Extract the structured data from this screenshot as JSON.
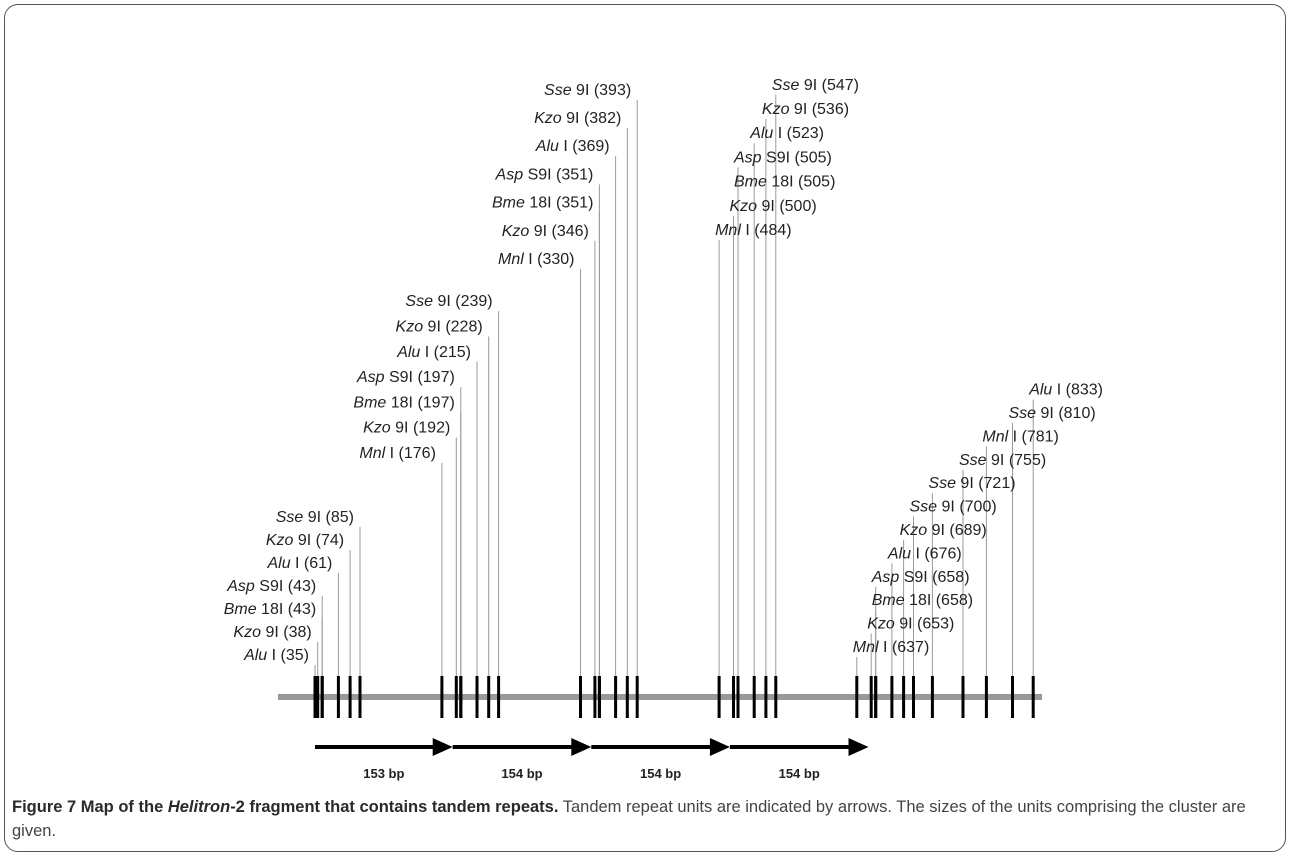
{
  "figure": {
    "bp_length": 153,
    "sites": [
      {
        "enzyme": "Alu",
        "suffix": "I",
        "pos": 35
      },
      {
        "enzyme": "Kzo",
        "suffix": "9I",
        "pos": 38
      },
      {
        "enzyme": "Bme",
        "suffix": "18I",
        "pos": 43
      },
      {
        "enzyme": "Asp",
        "suffix": "S9I",
        "pos": 43
      },
      {
        "enzyme": "Alu",
        "suffix": "I",
        "pos": 61
      },
      {
        "enzyme": "Kzo",
        "suffix": "9I",
        "pos": 74
      },
      {
        "enzyme": "Sse",
        "suffix": "9I",
        "pos": 85
      },
      {
        "enzyme": "Mnl",
        "suffix": "I",
        "pos": 176
      },
      {
        "enzyme": "Kzo",
        "suffix": "9I",
        "pos": 192
      },
      {
        "enzyme": "Bme",
        "suffix": "18I",
        "pos": 197
      },
      {
        "enzyme": "Asp",
        "suffix": "S9I",
        "pos": 197
      },
      {
        "enzyme": "Alu",
        "suffix": "I",
        "pos": 215
      },
      {
        "enzyme": "Kzo",
        "suffix": "9I",
        "pos": 228
      },
      {
        "enzyme": "Sse",
        "suffix": "9I",
        "pos": 239
      },
      {
        "enzyme": "Mnl",
        "suffix": "I",
        "pos": 330
      },
      {
        "enzyme": "Kzo",
        "suffix": "9I",
        "pos": 346
      },
      {
        "enzyme": "Bme",
        "suffix": "18I",
        "pos": 351
      },
      {
        "enzyme": "Asp",
        "suffix": "S9I",
        "pos": 351
      },
      {
        "enzyme": "Alu",
        "suffix": "I",
        "pos": 369
      },
      {
        "enzyme": "Kzo",
        "suffix": "9I",
        "pos": 382
      },
      {
        "enzyme": "Sse",
        "suffix": "9I",
        "pos": 393
      },
      {
        "enzyme": "Mnl",
        "suffix": "I",
        "pos": 484
      },
      {
        "enzyme": "Kzo",
        "suffix": "9I",
        "pos": 500
      },
      {
        "enzyme": "Bme",
        "suffix": "18I",
        "pos": 505
      },
      {
        "enzyme": "Asp",
        "suffix": "S9I",
        "pos": 505
      },
      {
        "enzyme": "Alu",
        "suffix": "I",
        "pos": 523
      },
      {
        "enzyme": "Kzo",
        "suffix": "9I",
        "pos": 536
      },
      {
        "enzyme": "Sse",
        "suffix": "9I",
        "pos": 547
      },
      {
        "enzyme": "Mnl",
        "suffix": "I",
        "pos": 637
      },
      {
        "enzyme": "Kzo",
        "suffix": "9I",
        "pos": 653
      },
      {
        "enzyme": "Bme",
        "suffix": "18I",
        "pos": 658
      },
      {
        "enzyme": "Asp",
        "suffix": "S9I",
        "pos": 658
      },
      {
        "enzyme": "Alu",
        "suffix": "I",
        "pos": 676
      },
      {
        "enzyme": "Kzo",
        "suffix": "9I",
        "pos": 689
      },
      {
        "enzyme": "Sse",
        "suffix": "9I",
        "pos": 700
      },
      {
        "enzyme": "Sse",
        "suffix": "9I",
        "pos": 721
      },
      {
        "enzyme": "Sse",
        "suffix": "9I",
        "pos": 755
      },
      {
        "enzyme": "Mnl",
        "suffix": "I",
        "pos": 781
      },
      {
        "enzyme": "Sse",
        "suffix": "9I",
        "pos": 810
      },
      {
        "enzyme": "Alu",
        "suffix": "I",
        "pos": 833
      }
    ],
    "repeats": [
      {
        "start": 35,
        "end": 188,
        "size_label": "153 bp"
      },
      {
        "start": 188,
        "end": 342,
        "size_label": "154 bp"
      },
      {
        "start": 342,
        "end": 496,
        "size_label": "154 bp"
      },
      {
        "start": 496,
        "end": 650,
        "size_label": "154 bp"
      }
    ],
    "colors": {
      "line": "#999999",
      "mark": "#000000",
      "leader": "#9a9a9a",
      "text": "#222222"
    }
  },
  "caption": {
    "lead_a": "Figure 7 Map of the ",
    "lead_italic": "Helitron",
    "lead_b": "-2 fragment that contains tandem repeats.",
    "body": " Tandem repeat units are indicated by arrows. The sizes of the units comprising the cluster are given."
  }
}
